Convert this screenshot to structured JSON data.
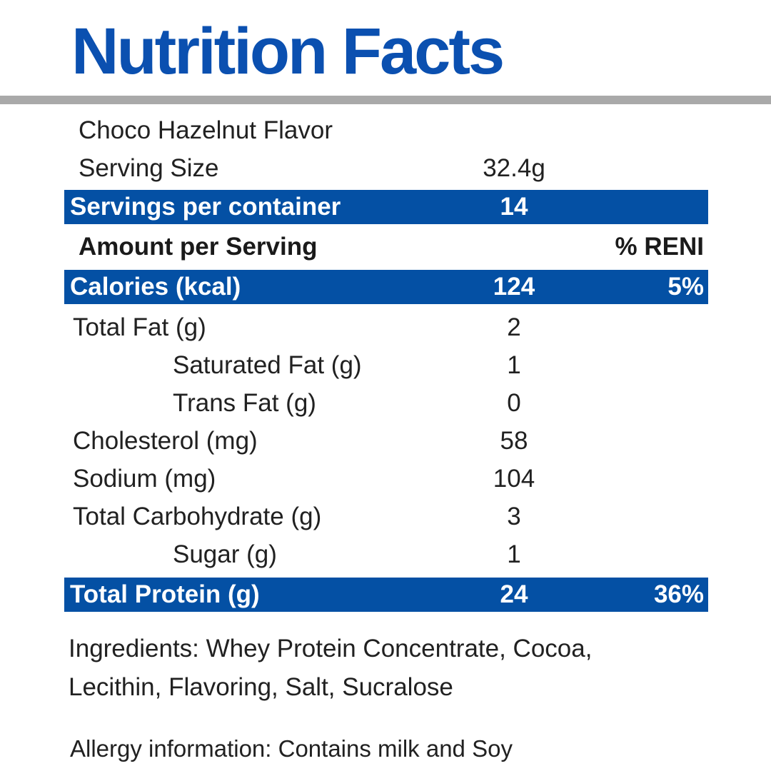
{
  "page": {
    "title": "Nutrition Facts"
  },
  "colors": {
    "title_blue": "#0b50b0",
    "bar_blue": "#0450a4",
    "divider_gray": "#a9a9a9",
    "text_dark": "#212121",
    "bar_text": "#ffffff"
  },
  "header": {
    "flavor": "Choco Hazelnut Flavor",
    "serving_size_label": "Serving Size",
    "serving_size_value": "32.4g",
    "servings_label": "Servings per container",
    "servings_value": "14",
    "amount_header": "Amount per Serving",
    "percent_header": "% RENI"
  },
  "table": {
    "rows": [
      {
        "label": "Calories (kcal)",
        "amount": "124",
        "percent": "5%"
      },
      {
        "label": "Total Fat (g)",
        "amount": "2",
        "percent": ""
      },
      {
        "label": "Saturated Fat (g)",
        "amount": "1",
        "percent": ""
      },
      {
        "label": "Trans Fat (g)",
        "amount": "0",
        "percent": ""
      },
      {
        "label": "Cholesterol (mg)",
        "amount": "58",
        "percent": ""
      },
      {
        "label": "Sodium (mg)",
        "amount": "104",
        "percent": ""
      },
      {
        "label": "Total Carbohydrate (g)",
        "amount": "3",
        "percent": ""
      },
      {
        "label": "Sugar (g)",
        "amount": "1",
        "percent": ""
      },
      {
        "label": "Total Protein (g)",
        "amount": "24",
        "percent": "36%"
      }
    ]
  },
  "footer": {
    "ingredients_line1": "Ingredients: Whey Protein Concentrate, Cocoa,",
    "ingredients_line2": "Lecithin, Flavoring, Salt, Sucralose",
    "allergy": "Allergy information: Contains milk and Soy"
  }
}
